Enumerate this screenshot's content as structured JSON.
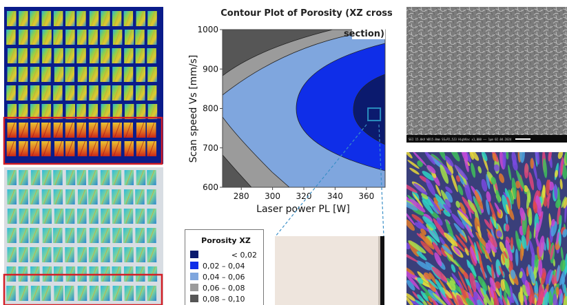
{
  "chart_data": {
    "type": "contour",
    "title": "Contour Plot of Porosity (XZ cross section)",
    "title_line1": "Contour Plot of Porosity (XZ cross",
    "title_line2": "section)",
    "xlabel": "Laser power PL [W]",
    "ylabel": "Scan speed Vs [mm/s]",
    "xlim": [
      268,
      372
    ],
    "ylim": [
      600,
      1000
    ],
    "x_ticks": [
      280,
      300,
      320,
      340,
      360
    ],
    "y_ticks": [
      600,
      700,
      800,
      900,
      1000
    ],
    "legend": {
      "title": "Porosity XZ",
      "entries": [
        {
          "label": "< 0,02",
          "color": "#0b1a6e"
        },
        {
          "label": "0,02  –  0,04",
          "color": "#0f2ee8"
        },
        {
          "label": "0,04  –  0,06",
          "color": "#7fa6de"
        },
        {
          "label": "0,06  –  0,08",
          "color": "#9b9b9b"
        },
        {
          "label": "0,08  –  0,10",
          "color": "#565656"
        }
      ]
    },
    "regions_order": [
      "0,08 – 0,10",
      "0,06 – 0,08",
      "0,04 – 0,06",
      "0,02 – 0,04",
      "< 0,02"
    ],
    "highlight_point": {
      "x": 365,
      "y": 785
    }
  },
  "colors": {
    "red_box": "#d41e25",
    "dashed_line": "#3a8fc7",
    "marker": "#2a8fbf",
    "heatmap_bg": "#0a1c8a",
    "sem_bg": "#767676",
    "micrograph_bg": "#eee5dd"
  },
  "panels": {
    "sem_info": "SEI   15.0kV   WD15.0mm   SS=P2,5J3   HighVac   x1,000   ——   1μm   02.04.2024"
  }
}
